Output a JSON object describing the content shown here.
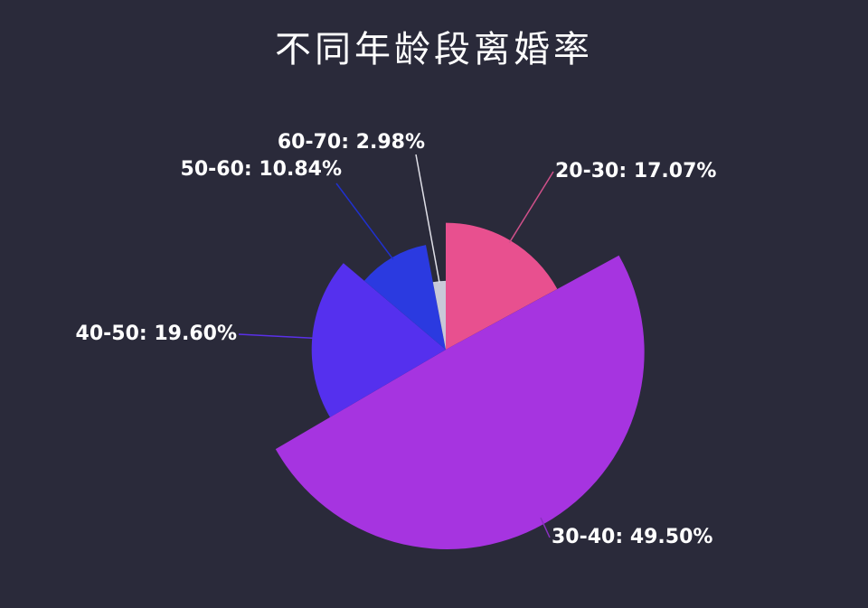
{
  "chart_data": {
    "type": "pie",
    "variant": "rose",
    "title": "不同年龄段离婚率",
    "categories": [
      "20-30",
      "30-40",
      "40-50",
      "50-60",
      "60-70"
    ],
    "values": [
      17.07,
      49.5,
      19.6,
      10.84,
      2.98
    ],
    "labels": [
      "20-30: 17.07%",
      "30-40: 49.50%",
      "40-50: 19.60%",
      "50-60: 10.84%",
      "60-70: 2.98%"
    ],
    "colors": [
      "#e8508f",
      "#a634e0",
      "#5530ee",
      "#2b3ae0",
      "#c8c8d8"
    ],
    "leader_colors": [
      "#d0508a",
      "#8a30c0",
      "#5a30e8",
      "#2030d0",
      "#e0e0e8"
    ],
    "legend": "none"
  }
}
